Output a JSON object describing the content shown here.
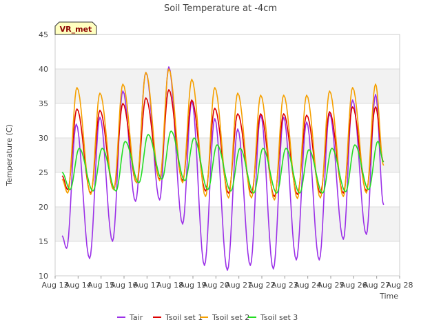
{
  "chart_data": {
    "type": "line",
    "title": "Soil Temperature at -4cm",
    "xlabel": "Time",
    "ylabel": "Temperature (C)",
    "badge": "VR_met",
    "ylim": [
      10,
      45
    ],
    "yticks": [
      10,
      15,
      20,
      25,
      30,
      35,
      40,
      45
    ],
    "xlim": [
      "Aug 13",
      "Aug 28"
    ],
    "xticks": [
      "Aug 13",
      "Aug 14",
      "Aug 15",
      "Aug 16",
      "Aug 17",
      "Aug 18",
      "Aug 19",
      "Aug 20",
      "Aug 21",
      "Aug 22",
      "Aug 23",
      "Aug 24",
      "Aug 25",
      "Aug 26",
      "Aug 27",
      "Aug 28"
    ],
    "grid": true,
    "legend_position": "bottom",
    "x_unit": "days from Aug 13 00:00 (approximate daily extrema)",
    "series": [
      {
        "name": "Tair",
        "color": "#9b30e8",
        "points": [
          [
            0.3,
            15.8
          ],
          [
            0.5,
            14.0
          ],
          [
            0.92,
            32.0
          ],
          [
            1.5,
            12.5
          ],
          [
            1.95,
            33.0
          ],
          [
            2.5,
            15.0
          ],
          [
            2.95,
            36.8
          ],
          [
            3.5,
            20.8
          ],
          [
            3.95,
            39.5
          ],
          [
            4.55,
            21.0
          ],
          [
            4.95,
            40.3
          ],
          [
            5.55,
            17.5
          ],
          [
            5.95,
            35.3
          ],
          [
            6.5,
            11.5
          ],
          [
            6.95,
            32.8
          ],
          [
            7.5,
            10.8
          ],
          [
            7.95,
            31.3
          ],
          [
            8.5,
            11.5
          ],
          [
            8.95,
            33.3
          ],
          [
            9.5,
            11.0
          ],
          [
            9.95,
            33.0
          ],
          [
            10.5,
            12.3
          ],
          [
            10.95,
            32.3
          ],
          [
            11.5,
            12.3
          ],
          [
            11.95,
            33.5
          ],
          [
            12.55,
            15.3
          ],
          [
            12.95,
            35.5
          ],
          [
            13.55,
            16.0
          ],
          [
            13.95,
            36.3
          ],
          [
            14.3,
            20.3
          ]
        ]
      },
      {
        "name": "Tsoil set 1",
        "color": "#dd0000",
        "points": [
          [
            0.3,
            24.5
          ],
          [
            0.55,
            22.5
          ],
          [
            0.95,
            34.2
          ],
          [
            1.55,
            22.0
          ],
          [
            1.95,
            34.0
          ],
          [
            2.55,
            22.5
          ],
          [
            2.95,
            35.0
          ],
          [
            3.55,
            23.5
          ],
          [
            3.95,
            35.8
          ],
          [
            4.55,
            24.0
          ],
          [
            4.95,
            37.0
          ],
          [
            5.55,
            23.8
          ],
          [
            5.95,
            35.5
          ],
          [
            6.55,
            22.3
          ],
          [
            6.95,
            34.3
          ],
          [
            7.55,
            22.0
          ],
          [
            7.95,
            33.5
          ],
          [
            8.55,
            22.0
          ],
          [
            8.95,
            33.5
          ],
          [
            9.55,
            21.5
          ],
          [
            9.95,
            33.5
          ],
          [
            10.55,
            21.8
          ],
          [
            10.95,
            33.3
          ],
          [
            11.55,
            22.0
          ],
          [
            11.95,
            33.8
          ],
          [
            12.55,
            22.0
          ],
          [
            12.95,
            34.5
          ],
          [
            13.55,
            22.3
          ],
          [
            13.95,
            34.5
          ],
          [
            14.3,
            26.5
          ]
        ]
      },
      {
        "name": "Tsoil set 2",
        "color": "#f5a000",
        "points": [
          [
            0.3,
            24.0
          ],
          [
            0.55,
            22.0
          ],
          [
            0.95,
            37.3
          ],
          [
            1.55,
            21.8
          ],
          [
            1.95,
            36.5
          ],
          [
            2.55,
            22.5
          ],
          [
            2.95,
            37.8
          ],
          [
            3.55,
            23.5
          ],
          [
            3.95,
            39.5
          ],
          [
            4.55,
            23.8
          ],
          [
            4.95,
            40.0
          ],
          [
            5.55,
            23.5
          ],
          [
            5.95,
            38.5
          ],
          [
            6.55,
            21.5
          ],
          [
            6.95,
            37.3
          ],
          [
            7.55,
            21.3
          ],
          [
            7.95,
            36.5
          ],
          [
            8.55,
            21.3
          ],
          [
            8.95,
            36.2
          ],
          [
            9.55,
            21.0
          ],
          [
            9.95,
            36.2
          ],
          [
            10.55,
            21.2
          ],
          [
            10.95,
            36.2
          ],
          [
            11.55,
            21.3
          ],
          [
            11.95,
            36.8
          ],
          [
            12.55,
            21.5
          ],
          [
            12.95,
            37.3
          ],
          [
            13.55,
            22.0
          ],
          [
            13.95,
            37.8
          ],
          [
            14.3,
            26.0
          ]
        ]
      },
      {
        "name": "Tsoil set 3",
        "color": "#22dd22",
        "points": [
          [
            0.3,
            25.0
          ],
          [
            0.65,
            22.5
          ],
          [
            1.05,
            28.5
          ],
          [
            1.65,
            22.3
          ],
          [
            2.05,
            28.5
          ],
          [
            2.65,
            22.3
          ],
          [
            3.05,
            29.5
          ],
          [
            3.65,
            23.5
          ],
          [
            4.05,
            30.5
          ],
          [
            4.65,
            24.0
          ],
          [
            5.05,
            31.0
          ],
          [
            5.65,
            23.8
          ],
          [
            6.05,
            30.0
          ],
          [
            6.65,
            22.5
          ],
          [
            7.05,
            29.0
          ],
          [
            7.65,
            22.3
          ],
          [
            8.05,
            28.5
          ],
          [
            8.65,
            22.0
          ],
          [
            9.05,
            28.5
          ],
          [
            9.65,
            22.0
          ],
          [
            10.05,
            28.5
          ],
          [
            10.65,
            22.0
          ],
          [
            11.05,
            28.3
          ],
          [
            11.65,
            22.0
          ],
          [
            12.05,
            28.5
          ],
          [
            12.65,
            22.2
          ],
          [
            13.05,
            29.0
          ],
          [
            13.65,
            22.5
          ],
          [
            14.05,
            29.5
          ],
          [
            14.3,
            26.5
          ]
        ]
      }
    ]
  }
}
